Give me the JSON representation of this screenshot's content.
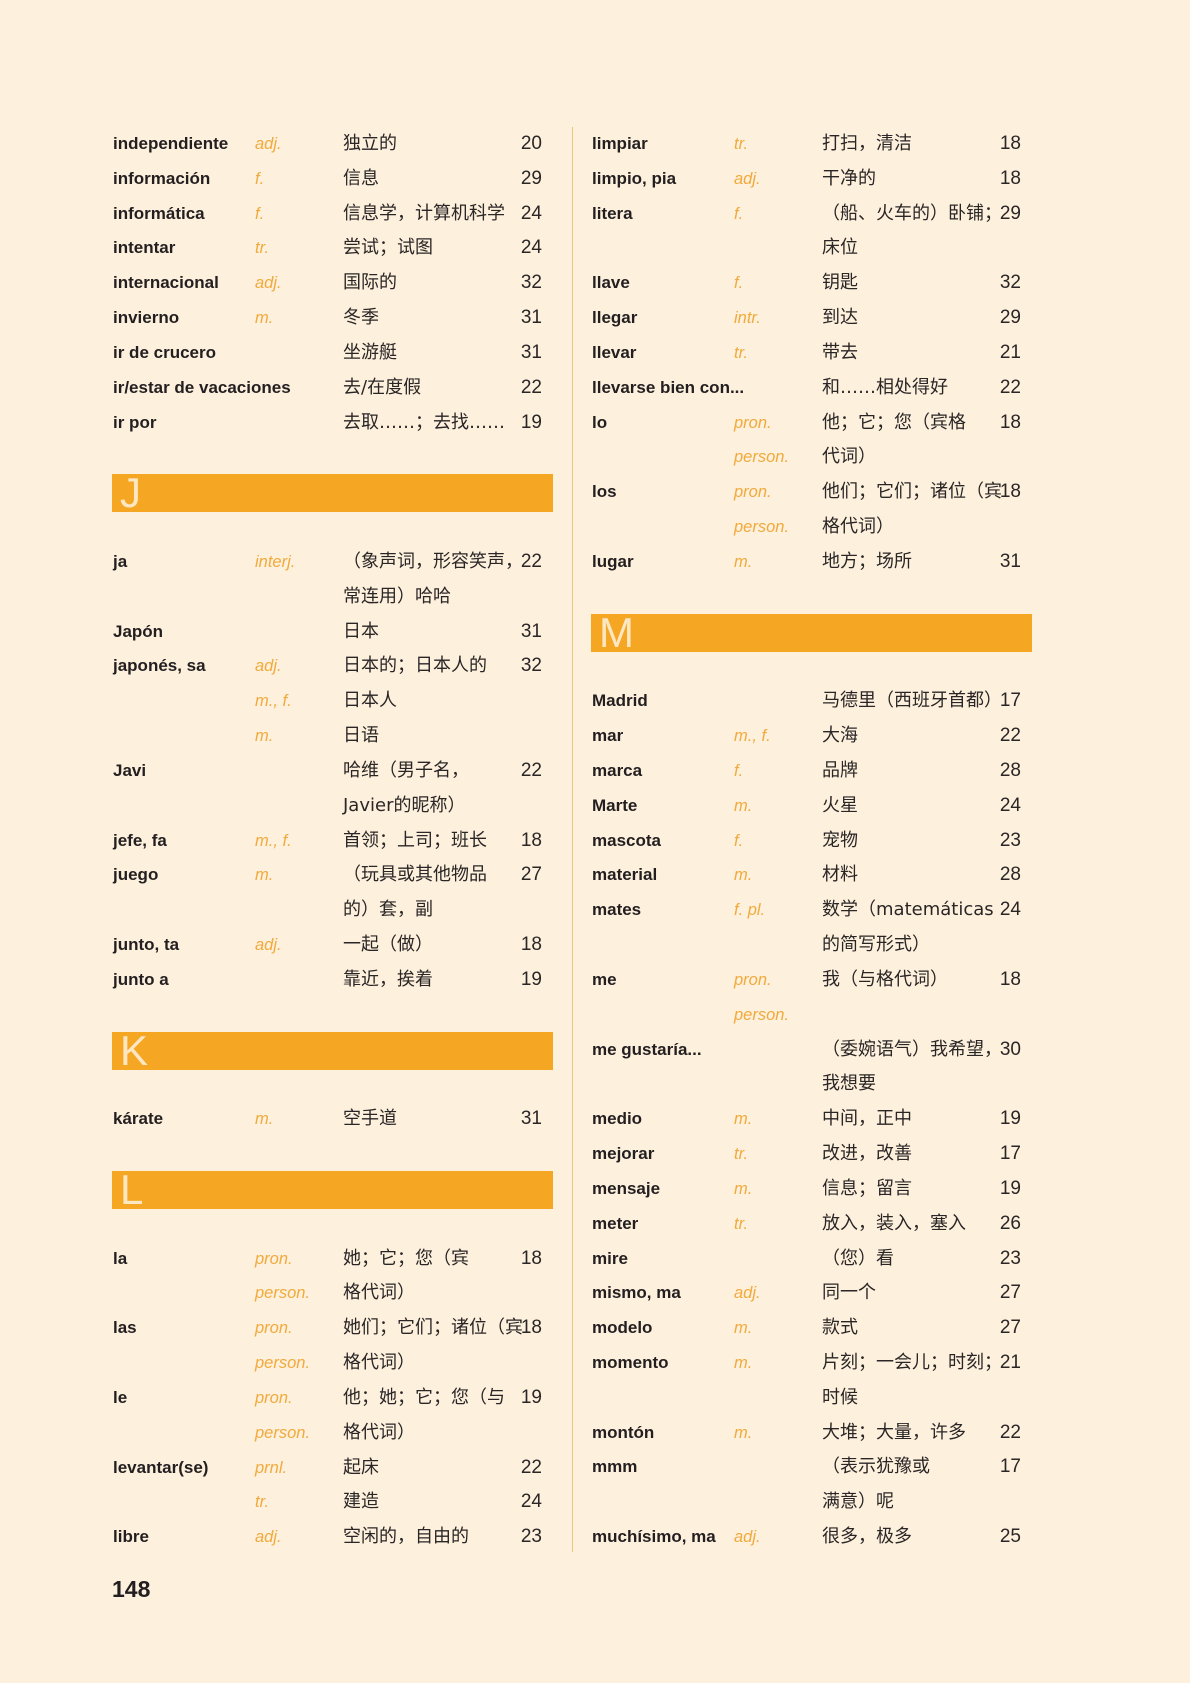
{
  "page_number": "148",
  "colors": {
    "accent": "#f5a623",
    "pos_text": "#f1aa3c",
    "background": "#fdf0dd"
  },
  "columns": [
    [
      {
        "lines": [
          [
            "independiente",
            "adj.",
            "独立的",
            "20"
          ]
        ]
      },
      {
        "lines": [
          [
            "información",
            "f.",
            "信息",
            "29"
          ]
        ]
      },
      {
        "lines": [
          [
            "informática",
            "f.",
            "信息学，计算机科学",
            "24"
          ]
        ]
      },
      {
        "lines": [
          [
            "intentar",
            "tr.",
            "尝试；试图",
            "24"
          ]
        ]
      },
      {
        "lines": [
          [
            "internacional",
            "adj.",
            "国际的",
            "32"
          ]
        ]
      },
      {
        "lines": [
          [
            "invierno",
            "m.",
            "冬季",
            "31"
          ]
        ]
      },
      {
        "lines": [
          [
            "ir de crucero",
            "",
            "坐游艇",
            "31"
          ]
        ]
      },
      {
        "lines": [
          [
            "ir/estar de vacaciones",
            "",
            "去/在度假",
            "22"
          ]
        ]
      },
      {
        "lines": [
          [
            "ir por",
            "",
            "去取……；去找……",
            "19"
          ]
        ]
      },
      {
        "letter": "J"
      },
      {
        "lines": [
          [
            "ja",
            "interj.",
            "（象声词，形容笑声，",
            "22"
          ],
          [
            "",
            "",
            "常连用）哈哈",
            ""
          ]
        ]
      },
      {
        "lines": [
          [
            "Japón",
            "",
            "日本",
            "31"
          ]
        ]
      },
      {
        "lines": [
          [
            "japonés, sa",
            "adj.",
            "日本的；日本人的",
            "32"
          ],
          [
            "",
            "m., f.",
            "日本人",
            ""
          ],
          [
            "",
            "m.",
            "日语",
            ""
          ]
        ]
      },
      {
        "lines": [
          [
            "Javi",
            "",
            "哈维（男子名，",
            "22"
          ],
          [
            "",
            "",
            "Javier的昵称）",
            ""
          ]
        ]
      },
      {
        "lines": [
          [
            "jefe, fa",
            "m., f.",
            "首领；上司；班长",
            "18"
          ]
        ]
      },
      {
        "lines": [
          [
            "juego",
            "m.",
            "（玩具或其他物品",
            "27"
          ],
          [
            "",
            "",
            "的）套，副",
            ""
          ]
        ]
      },
      {
        "lines": [
          [
            "junto, ta",
            "adj.",
            "一起（做）",
            "18"
          ]
        ]
      },
      {
        "lines": [
          [
            "junto a",
            "",
            "靠近，挨着",
            "19"
          ]
        ]
      },
      {
        "letter": "K"
      },
      {
        "lines": [
          [
            "kárate",
            "m.",
            "空手道",
            "31"
          ]
        ]
      },
      {
        "letter": "L"
      },
      {
        "lines": [
          [
            "la",
            "pron.",
            "她；它；您（宾",
            "18"
          ],
          [
            "",
            "person.",
            "格代词）",
            ""
          ]
        ]
      },
      {
        "lines": [
          [
            "las",
            "pron.",
            "她们；它们；诸位（宾",
            "18"
          ],
          [
            "",
            "person.",
            "格代词）",
            ""
          ]
        ]
      },
      {
        "lines": [
          [
            "le",
            "pron.",
            "他；她；它；您（与",
            "19"
          ],
          [
            "",
            "person.",
            "格代词）",
            ""
          ]
        ]
      },
      {
        "lines": [
          [
            "levantar(se)",
            "prnl.",
            "起床",
            "22"
          ],
          [
            "",
            "tr.",
            "建造",
            "24"
          ]
        ]
      },
      {
        "lines": [
          [
            "libre",
            "adj.",
            "空闲的，自由的",
            "23"
          ]
        ]
      }
    ],
    [
      {
        "lines": [
          [
            "limpiar",
            "tr.",
            "打扫，清洁",
            "18"
          ]
        ]
      },
      {
        "lines": [
          [
            "limpio, pia",
            "adj.",
            "干净的",
            "18"
          ]
        ]
      },
      {
        "lines": [
          [
            "litera",
            "f.",
            "（船、火车的）卧铺；",
            "29"
          ],
          [
            "",
            "",
            "床位",
            ""
          ]
        ]
      },
      {
        "lines": [
          [
            "llave",
            "f.",
            "钥匙",
            "32"
          ]
        ]
      },
      {
        "lines": [
          [
            "llegar",
            "intr.",
            "到达",
            "29"
          ]
        ]
      },
      {
        "lines": [
          [
            "llevar",
            "tr.",
            "带去",
            "21"
          ]
        ]
      },
      {
        "lines": [
          [
            "llevarse bien con...",
            "",
            "和……相处得好",
            "22"
          ]
        ]
      },
      {
        "lines": [
          [
            "lo",
            "pron.",
            "他；它；您（宾格",
            "18"
          ],
          [
            "",
            "person.",
            "代词）",
            ""
          ]
        ]
      },
      {
        "lines": [
          [
            "los",
            "pron.",
            "他们；它们；诸位（宾",
            "18"
          ],
          [
            "",
            "person.",
            "格代词）",
            ""
          ]
        ]
      },
      {
        "lines": [
          [
            "lugar",
            "m.",
            "地方；场所",
            "31"
          ]
        ]
      },
      {
        "letter": "M"
      },
      {
        "lines": [
          [
            "Madrid",
            "",
            "马德里（西班牙首都）",
            "17"
          ]
        ]
      },
      {
        "lines": [
          [
            "mar",
            "m., f.",
            "大海",
            "22"
          ]
        ]
      },
      {
        "lines": [
          [
            "marca",
            "f.",
            "品牌",
            "28"
          ]
        ]
      },
      {
        "lines": [
          [
            "Marte",
            "m.",
            "火星",
            "24"
          ]
        ]
      },
      {
        "lines": [
          [
            "mascota",
            "f.",
            "宠物",
            "23"
          ]
        ]
      },
      {
        "lines": [
          [
            "material",
            "m.",
            "材料",
            "28"
          ]
        ]
      },
      {
        "lines": [
          [
            "mates",
            "f. pl.",
            "数学（matemáticas",
            "24"
          ],
          [
            "",
            "",
            "的简写形式）",
            ""
          ]
        ]
      },
      {
        "lines": [
          [
            "me",
            "pron.",
            "我（与格代词）",
            "18"
          ],
          [
            "",
            "person.",
            "",
            ""
          ]
        ]
      },
      {
        "lines": [
          [
            "me gustaría...",
            "",
            "（委婉语气）我希望，",
            "30"
          ],
          [
            "",
            "",
            "我想要",
            ""
          ]
        ]
      },
      {
        "lines": [
          [
            "medio",
            "m.",
            "中间，正中",
            "19"
          ]
        ]
      },
      {
        "lines": [
          [
            "mejorar",
            "tr.",
            "改进，改善",
            "17"
          ]
        ]
      },
      {
        "lines": [
          [
            "mensaje",
            "m.",
            "信息；留言",
            "19"
          ]
        ]
      },
      {
        "lines": [
          [
            "meter",
            "tr.",
            "放入，装入，塞入",
            "26"
          ]
        ]
      },
      {
        "lines": [
          [
            "mire",
            "",
            "（您）看",
            "23"
          ]
        ]
      },
      {
        "lines": [
          [
            "mismo, ma",
            "adj.",
            "同一个",
            "27"
          ]
        ]
      },
      {
        "lines": [
          [
            "modelo",
            "m.",
            "款式",
            "27"
          ]
        ]
      },
      {
        "lines": [
          [
            "momento",
            "m.",
            "片刻；一会儿；时刻；",
            "21"
          ],
          [
            "",
            "",
            "时候",
            ""
          ]
        ]
      },
      {
        "lines": [
          [
            "montón",
            "m.",
            "大堆；大量，许多",
            "22"
          ]
        ]
      },
      {
        "lines": [
          [
            "mmm",
            "",
            "（表示犹豫或",
            "17"
          ],
          [
            "",
            "",
            "满意）呢",
            ""
          ]
        ]
      },
      {
        "lines": [
          [
            "muchísimo, ma",
            "adj.",
            "很多，极多",
            "25"
          ]
        ]
      }
    ]
  ]
}
